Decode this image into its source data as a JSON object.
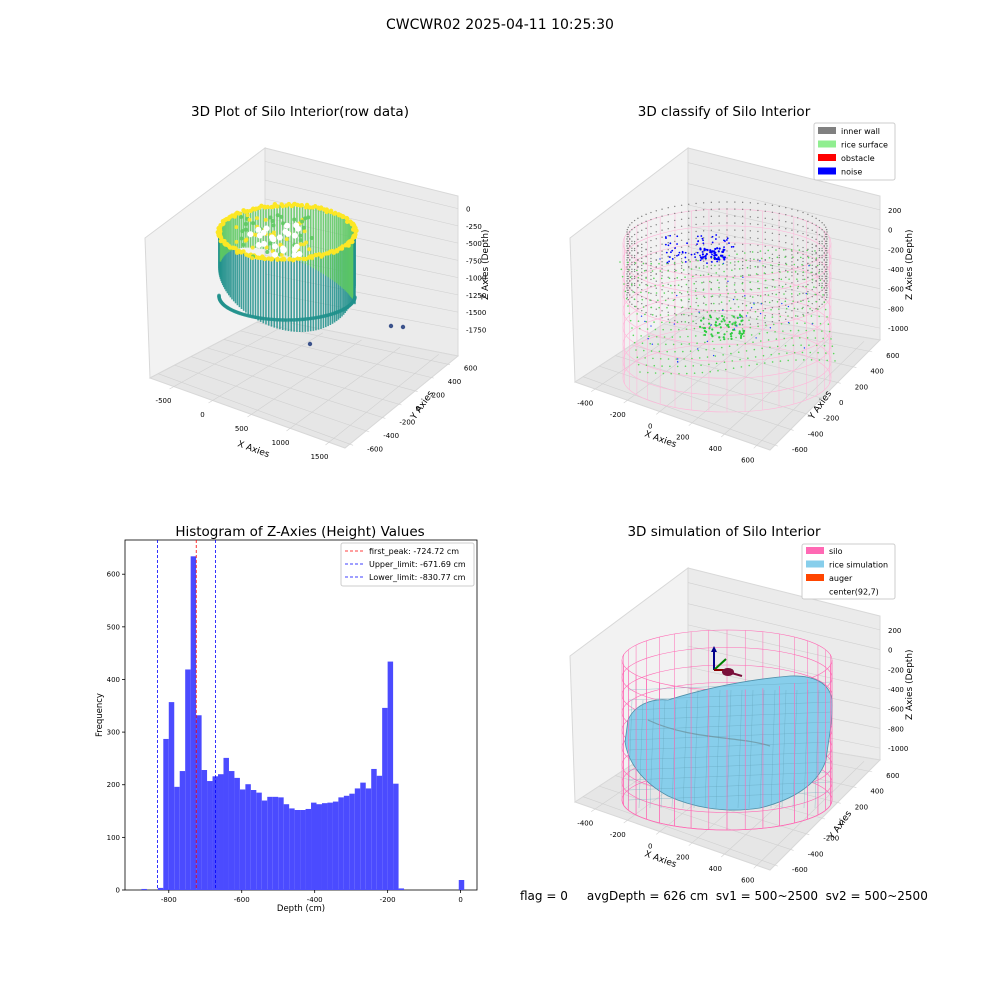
{
  "figure": {
    "suptitle": "CWCWR02 2025-04-11 10:25:30",
    "status_line": "flag = 0     avgDepth = 626 cm  sv1 = 500~2500  sv2 = 500~2500"
  },
  "panels": {
    "raw": {
      "title": "3D Plot of Silo Interior(row data)",
      "xlabel": "X Axies",
      "ylabel": "Y Axies",
      "zlabel": "Z Axies (Depth)",
      "x_ticks": [
        "-500",
        "0",
        "500",
        "1000",
        "1500"
      ],
      "y_ticks": [
        "-600",
        "-400",
        "-200",
        "0",
        "200",
        "400",
        "600"
      ],
      "z_ticks": [
        "0",
        "-250",
        "-500",
        "-750",
        "-1000",
        "-1250",
        "-1500",
        "-1750"
      ],
      "colormap": [
        "#fde725",
        "#5ec962",
        "#21918c",
        "#3b528b"
      ]
    },
    "classify": {
      "title": "3D classify of Silo Interior",
      "xlabel": "X Axies",
      "ylabel": "Y Axies",
      "zlabel": "Z Axies (Depth)",
      "x_ticks": [
        "-400",
        "-200",
        "0",
        "200",
        "400",
        "600"
      ],
      "y_ticks": [
        "-600",
        "-400",
        "-200",
        "0",
        "200",
        "400",
        "600"
      ],
      "z_ticks": [
        "200",
        "0",
        "-200",
        "-400",
        "-600",
        "-800",
        "-1000"
      ],
      "legend": [
        {
          "label": "inner wall",
          "color": "#808080"
        },
        {
          "label": "rice surface",
          "color": "#90ee90"
        },
        {
          "label": "obstacle",
          "color": "#ff0000"
        },
        {
          "label": "noise",
          "color": "#0000ff"
        }
      ],
      "silo_color": "#ffb6d9"
    },
    "simulation": {
      "title": "3D simulation of Silo Interior",
      "xlabel": "X Axies",
      "ylabel": "Y Axies",
      "zlabel": "Z Axies (Depth)",
      "x_ticks": [
        "-400",
        "-200",
        "0",
        "200",
        "400",
        "600"
      ],
      "y_ticks": [
        "-600",
        "-400",
        "-200",
        "0",
        "200",
        "400",
        "600"
      ],
      "z_ticks": [
        "200",
        "0",
        "-200",
        "-400",
        "-600",
        "-800",
        "-1000"
      ],
      "legend": [
        {
          "label": "silo",
          "color": "#ff69b4"
        },
        {
          "label": "rice simulation",
          "color": "#87ceeb"
        },
        {
          "label": "auger",
          "color": "#ff4500"
        },
        {
          "label": "center(92,7)",
          "color": "#ffffff"
        }
      ]
    }
  },
  "chart_data": [
    {
      "type": "scatter",
      "title": "3D Plot of Silo Interior(row data)",
      "xlabel": "X Axies",
      "ylabel": "Y Axies",
      "zlabel": "Z Axies (Depth)",
      "xlim": [
        -800,
        1500
      ],
      "ylim": [
        -650,
        650
      ],
      "zlim": [
        -1850,
        50
      ]
    },
    {
      "type": "scatter",
      "title": "3D classify of Silo Interior",
      "xlabel": "X Axies",
      "ylabel": "Y Axies",
      "zlabel": "Z Axies (Depth)",
      "series": [
        {
          "name": "inner wall"
        },
        {
          "name": "rice surface"
        },
        {
          "name": "obstacle"
        },
        {
          "name": "noise"
        }
      ]
    },
    {
      "type": "bar",
      "title": "Histogram of Z-Axies (Height) Values",
      "xlabel": "Depth (cm)",
      "ylabel": "Frequency",
      "xlim": [
        -920,
        45
      ],
      "ylim": [
        0,
        665
      ],
      "x_ticks": [
        -800,
        -600,
        -400,
        -200,
        0
      ],
      "y_ticks": [
        0,
        100,
        200,
        300,
        400,
        500,
        600
      ],
      "bin_width": 15,
      "bin_starts": [
        -875,
        -860,
        -845,
        -830,
        -815,
        -800,
        -785,
        -770,
        -755,
        -740,
        -725,
        -710,
        -695,
        -680,
        -665,
        -650,
        -635,
        -620,
        -605,
        -590,
        -575,
        -560,
        -545,
        -530,
        -515,
        -500,
        -485,
        -470,
        -455,
        -440,
        -425,
        -410,
        -395,
        -380,
        -365,
        -350,
        -335,
        -320,
        -305,
        -290,
        -275,
        -260,
        -245,
        -230,
        -215,
        -200,
        -185,
        -170,
        -155,
        -140,
        -125,
        -110,
        -95,
        -80,
        -65,
        -50,
        -35,
        -20,
        -5
      ],
      "values": [
        2,
        0,
        0,
        4,
        287,
        357,
        196,
        226,
        419,
        634,
        332,
        228,
        207,
        216,
        220,
        251,
        226,
        213,
        191,
        201,
        190,
        185,
        170,
        177,
        177,
        176,
        163,
        155,
        152,
        152,
        154,
        166,
        163,
        165,
        166,
        168,
        176,
        179,
        183,
        193,
        204,
        193,
        230,
        217,
        346,
        434,
        202,
        3,
        0,
        0,
        0,
        0,
        0,
        0,
        0,
        0,
        0,
        0,
        19
      ],
      "vlines": [
        {
          "label": "first_peak: -724.72 cm",
          "x": -724.72,
          "color": "#ff0000"
        },
        {
          "label": "Upper_limit: -671.69 cm",
          "x": -671.69,
          "color": "#0000ff"
        },
        {
          "label": "Lower_limit: -830.77 cm",
          "x": -830.77,
          "color": "#0000ff"
        }
      ],
      "bar_color": "#4b4bff"
    },
    {
      "type": "area",
      "title": "3D simulation of Silo Interior",
      "xlabel": "X Axies",
      "ylabel": "Y Axies",
      "zlabel": "Z Axies (Depth)",
      "series": [
        {
          "name": "silo"
        },
        {
          "name": "rice simulation"
        },
        {
          "name": "auger"
        },
        {
          "name": "center(92,7)"
        }
      ]
    }
  ]
}
